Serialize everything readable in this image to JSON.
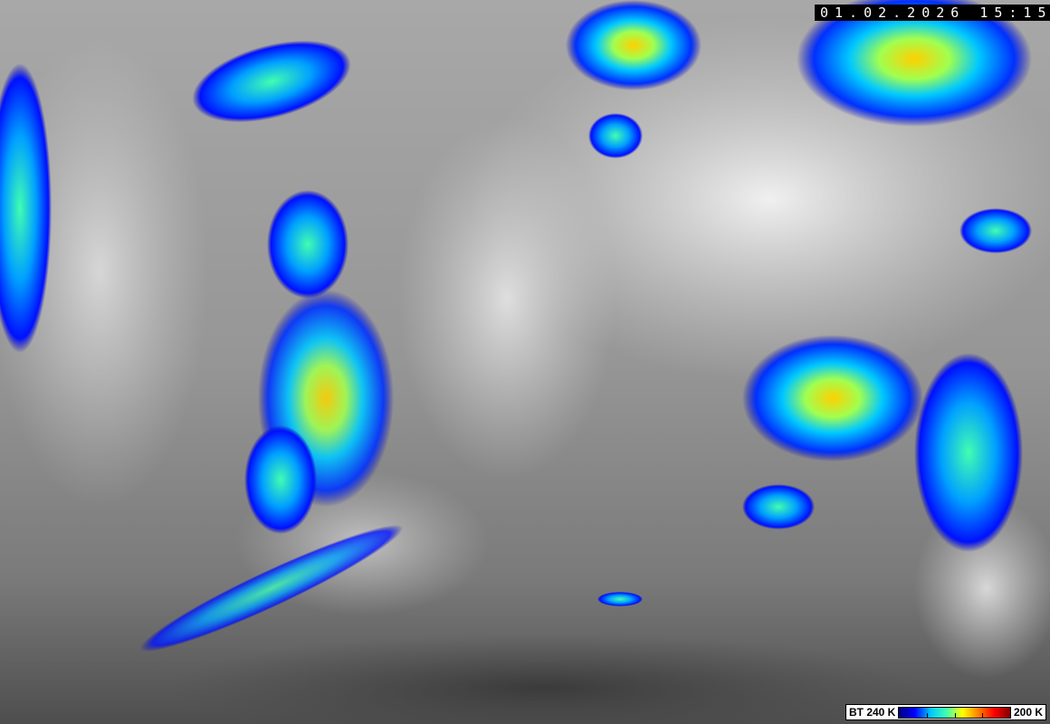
{
  "image": {
    "kind": "infrared satellite image",
    "timestamp": "01.02.2026 15:15"
  },
  "legend": {
    "label_min": "BT 240 K",
    "label_max": "200 K",
    "colors": [
      "#00007a",
      "#0000ff",
      "#00c8ff",
      "#40ffb0",
      "#ffff00",
      "#ff8000",
      "#ff0000",
      "#800000"
    ],
    "tick_fractions": [
      0.25,
      0.5,
      0.75
    ]
  }
}
